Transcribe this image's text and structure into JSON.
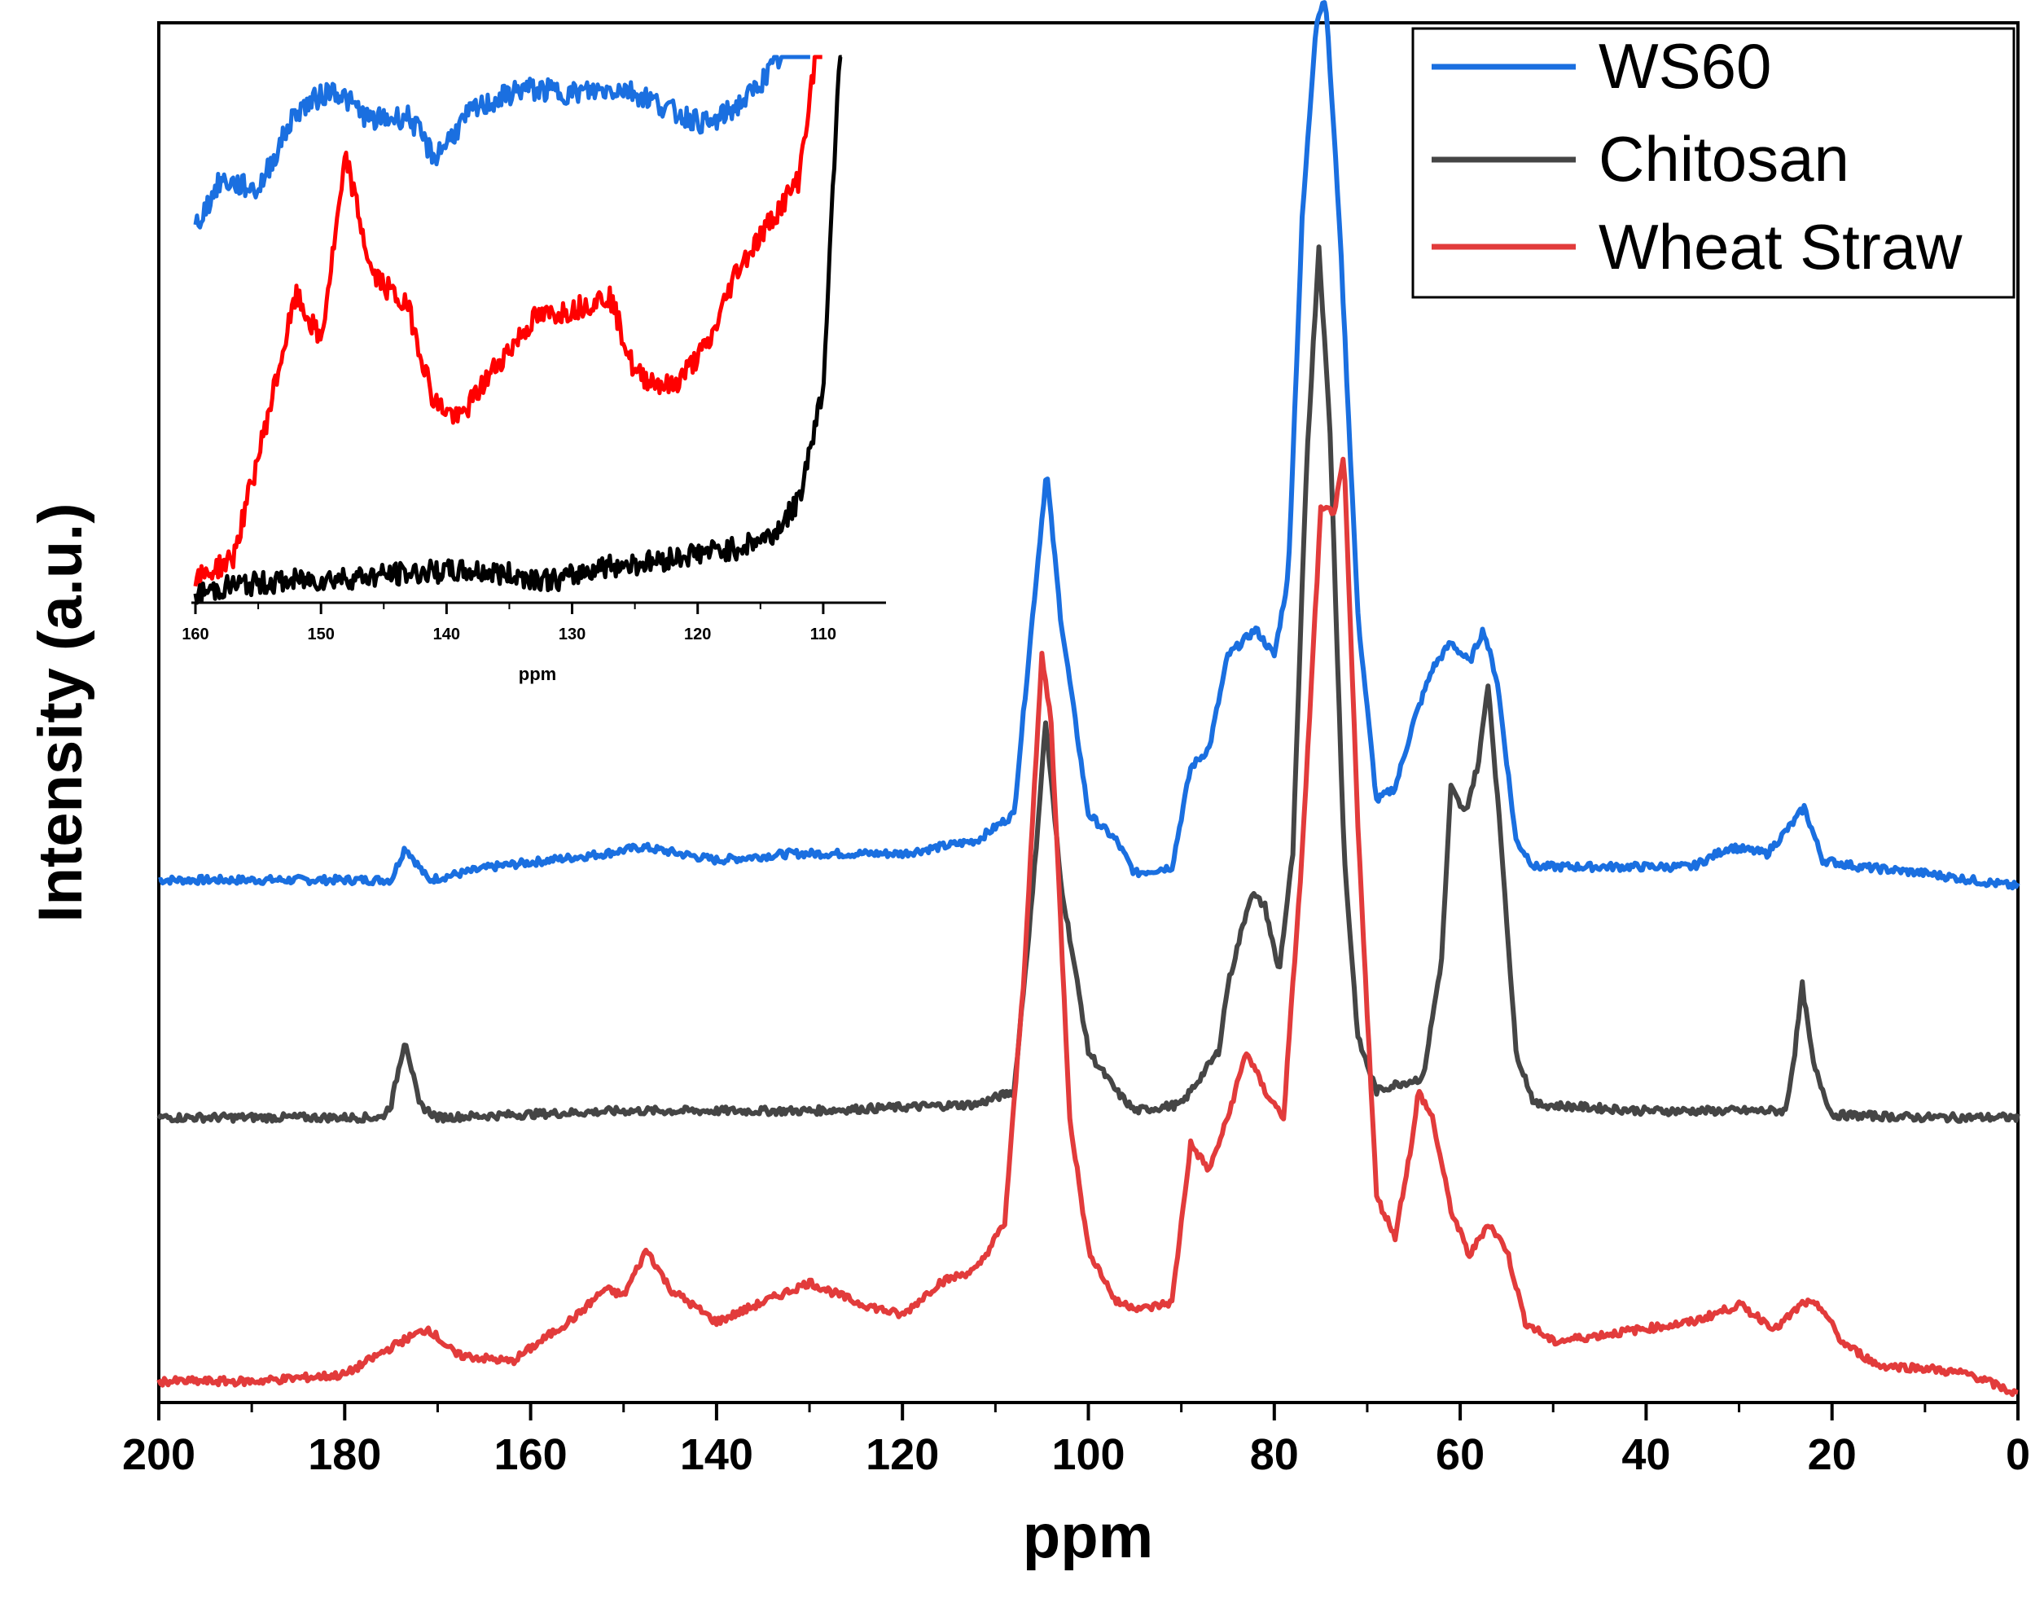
{
  "chart_data": [
    {
      "type": "line",
      "title": "",
      "xlabel": "ppm",
      "ylabel": "Intensity (a.u.)",
      "xlim": [
        200,
        0
      ],
      "x_reversed": true,
      "x_ticks": [
        "200",
        "180",
        "160",
        "140",
        "120",
        "100",
        "80",
        "60",
        "40",
        "20",
        "0"
      ],
      "y_ticks_labeled": false,
      "legend": {
        "placement": "top-right",
        "entries": [
          "WS60",
          "Chitosan",
          "Wheat Straw"
        ]
      },
      "series": [
        {
          "name": "WS60",
          "color": "#1a6fe0",
          "baseline_offset": 0.38,
          "points": [
            [
              200,
              0.0
            ],
            [
              175,
              0.0
            ],
            [
              173.5,
              0.025
            ],
            [
              171,
              0.0
            ],
            [
              164,
              0.01
            ],
            [
              152,
              0.02
            ],
            [
              148,
              0.025
            ],
            [
              140,
              0.015
            ],
            [
              132,
              0.02
            ],
            [
              120,
              0.02
            ],
            [
              112,
              0.03
            ],
            [
              108,
              0.05
            ],
            [
              106,
              0.2
            ],
            [
              104.5,
              0.31
            ],
            [
              103,
              0.2
            ],
            [
              100,
              0.05
            ],
            [
              97,
              0.03
            ],
            [
              95,
              0.005
            ],
            [
              91,
              0.01
            ],
            [
              89,
              0.085
            ],
            [
              87,
              0.1
            ],
            [
              85,
              0.17
            ],
            [
              82,
              0.19
            ],
            [
              80,
              0.17
            ],
            [
              78.5,
              0.23
            ],
            [
              77,
              0.5
            ],
            [
              75.5,
              0.65
            ],
            [
              74.5,
              0.67
            ],
            [
              73,
              0.5
            ],
            [
              71,
              0.2
            ],
            [
              69,
              0.06
            ],
            [
              67,
              0.07
            ],
            [
              65,
              0.12
            ],
            [
              63,
              0.16
            ],
            [
              61,
              0.18
            ],
            [
              59,
              0.165
            ],
            [
              57.5,
              0.19
            ],
            [
              56,
              0.15
            ],
            [
              54,
              0.03
            ],
            [
              52,
              0.01
            ],
            [
              45,
              0.01
            ],
            [
              35,
              0.01
            ],
            [
              31,
              0.025
            ],
            [
              27,
              0.02
            ],
            [
              24,
              0.045
            ],
            [
              23,
              0.055
            ],
            [
              21,
              0.015
            ],
            [
              17,
              0.01
            ],
            [
              10,
              0.005
            ],
            [
              5,
              0.0
            ],
            [
              0,
              -0.005
            ]
          ],
          "inset_points": [
            [
              160,
              0.8
            ],
            [
              158,
              0.9
            ],
            [
              155,
              0.88
            ],
            [
              152,
              1.05
            ],
            [
              149,
              1.1
            ],
            [
              146,
              1.03
            ],
            [
              143,
              1.04
            ],
            [
              141,
              0.95
            ],
            [
              138,
              1.05
            ],
            [
              134,
              1.1
            ],
            [
              130,
              1.09
            ],
            [
              126,
              1.1
            ],
            [
              124,
              1.08
            ],
            [
              122,
              1.05
            ],
            [
              119,
              1.02
            ],
            [
              116,
              1.08
            ],
            [
              113,
              1.18
            ],
            [
              111,
              1.28
            ]
          ]
        },
        {
          "name": "Chitosan",
          "color": "#454545",
          "baseline_offset": 0.2,
          "points": [
            [
              200,
              0.0
            ],
            [
              176,
              0.0
            ],
            [
              175,
              0.01
            ],
            [
              173.5,
              0.06
            ],
            [
              172,
              0.01
            ],
            [
              170,
              0.0
            ],
            [
              150,
              0.005
            ],
            [
              130,
              0.005
            ],
            [
              112,
              0.01
            ],
            [
              108,
              0.02
            ],
            [
              106,
              0.17
            ],
            [
              104.6,
              0.3
            ],
            [
              103,
              0.18
            ],
            [
              100,
              0.05
            ],
            [
              97,
              0.02
            ],
            [
              95,
              0.005
            ],
            [
              90,
              0.01
            ],
            [
              86,
              0.05
            ],
            [
              85,
              0.1
            ],
            [
              82.5,
              0.17
            ],
            [
              81,
              0.16
            ],
            [
              79.5,
              0.11
            ],
            [
              78,
              0.2
            ],
            [
              76.5,
              0.5
            ],
            [
              75.2,
              0.66
            ],
            [
              74,
              0.52
            ],
            [
              72.5,
              0.2
            ],
            [
              71,
              0.06
            ],
            [
              69,
              0.02
            ],
            [
              67,
              0.025
            ],
            [
              64,
              0.03
            ],
            [
              62,
              0.12
            ],
            [
              61,
              0.25
            ],
            [
              59.5,
              0.23
            ],
            [
              58,
              0.27
            ],
            [
              57,
              0.33
            ],
            [
              55.5,
              0.2
            ],
            [
              54,
              0.05
            ],
            [
              52,
              0.01
            ],
            [
              40,
              0.005
            ],
            [
              25,
              0.005
            ],
            [
              24,
              0.05
            ],
            [
              23.2,
              0.1
            ],
            [
              22,
              0.04
            ],
            [
              20,
              0.002
            ],
            [
              10,
              0.0
            ],
            [
              0,
              0.0
            ]
          ],
          "inset_points": [
            [
              160,
              0.0
            ],
            [
              157,
              0.02
            ],
            [
              152,
              0.03
            ],
            [
              146,
              0.04
            ],
            [
              141,
              0.05
            ],
            [
              137,
              0.05
            ],
            [
              134,
              0.04
            ],
            [
              131,
              0.03
            ],
            [
              128,
              0.06
            ],
            [
              124,
              0.07
            ],
            [
              120,
              0.09
            ],
            [
              117,
              0.1
            ],
            [
              114,
              0.13
            ],
            [
              112,
              0.2
            ],
            [
              110,
              0.45
            ],
            [
              108.5,
              1.3
            ]
          ]
        },
        {
          "name": "Wheat Straw",
          "color": "#e23b3b",
          "baseline_offset": 0.0,
          "points": [
            [
              200,
              0.0
            ],
            [
              190,
              0.0
            ],
            [
              180,
              0.005
            ],
            [
              174,
              0.03
            ],
            [
              171,
              0.04
            ],
            [
              168,
              0.02
            ],
            [
              162,
              0.015
            ],
            [
              155,
              0.05
            ],
            [
              152,
              0.07
            ],
            [
              150,
              0.065
            ],
            [
              147.5,
              0.1
            ],
            [
              145,
              0.07
            ],
            [
              140,
              0.045
            ],
            [
              135,
              0.06
            ],
            [
              130,
              0.075
            ],
            [
              125,
              0.06
            ],
            [
              120,
              0.05
            ],
            [
              116,
              0.075
            ],
            [
              112,
              0.085
            ],
            [
              109,
              0.12
            ],
            [
              107,
              0.3
            ],
            [
              105,
              0.55
            ],
            [
              104,
              0.5
            ],
            [
              102,
              0.2
            ],
            [
              100,
              0.1
            ],
            [
              97,
              0.06
            ],
            [
              94,
              0.055
            ],
            [
              91,
              0.06
            ],
            [
              89,
              0.18
            ],
            [
              87,
              0.16
            ],
            [
              85,
              0.2
            ],
            [
              83,
              0.25
            ],
            [
              81,
              0.22
            ],
            [
              79,
              0.2
            ],
            [
              77,
              0.4
            ],
            [
              75,
              0.66
            ],
            [
              73.5,
              0.66
            ],
            [
              72.5,
              0.7
            ],
            [
              71,
              0.42
            ],
            [
              69,
              0.14
            ],
            [
              67,
              0.11
            ],
            [
              65,
              0.19
            ],
            [
              64.5,
              0.22
            ],
            [
              63,
              0.2
            ],
            [
              61,
              0.13
            ],
            [
              59,
              0.095
            ],
            [
              57,
              0.12
            ],
            [
              55,
              0.1
            ],
            [
              53,
              0.045
            ],
            [
              50,
              0.03
            ],
            [
              45,
              0.035
            ],
            [
              40,
              0.04
            ],
            [
              35,
              0.045
            ],
            [
              30,
              0.058
            ],
            [
              26,
              0.04
            ],
            [
              23,
              0.06
            ],
            [
              21,
              0.055
            ],
            [
              19,
              0.03
            ],
            [
              15,
              0.012
            ],
            [
              10,
              0.01
            ],
            [
              5,
              0.005
            ],
            [
              0,
              -0.01
            ]
          ],
          "inset_points": [
            [
              160,
              0.03
            ],
            [
              157,
              0.08
            ],
            [
              155,
              0.3
            ],
            [
              152,
              0.65
            ],
            [
              150,
              0.55
            ],
            [
              148,
              0.95
            ],
            [
              146,
              0.7
            ],
            [
              143,
              0.62
            ],
            [
              141,
              0.42
            ],
            [
              139,
              0.38
            ],
            [
              136,
              0.5
            ],
            [
              133,
              0.6
            ],
            [
              130,
              0.62
            ],
            [
              127,
              0.65
            ],
            [
              125,
              0.48
            ],
            [
              122,
              0.45
            ],
            [
              119,
              0.55
            ],
            [
              117,
              0.7
            ],
            [
              114,
              0.82
            ],
            [
              112,
              0.9
            ],
            [
              110,
              1.28
            ]
          ]
        }
      ],
      "inset": {
        "xlabel": "ppm",
        "xlim": [
          160,
          105
        ],
        "x_ticks": [
          "160",
          "150",
          "140",
          "130",
          "120",
          "110"
        ]
      }
    }
  ]
}
